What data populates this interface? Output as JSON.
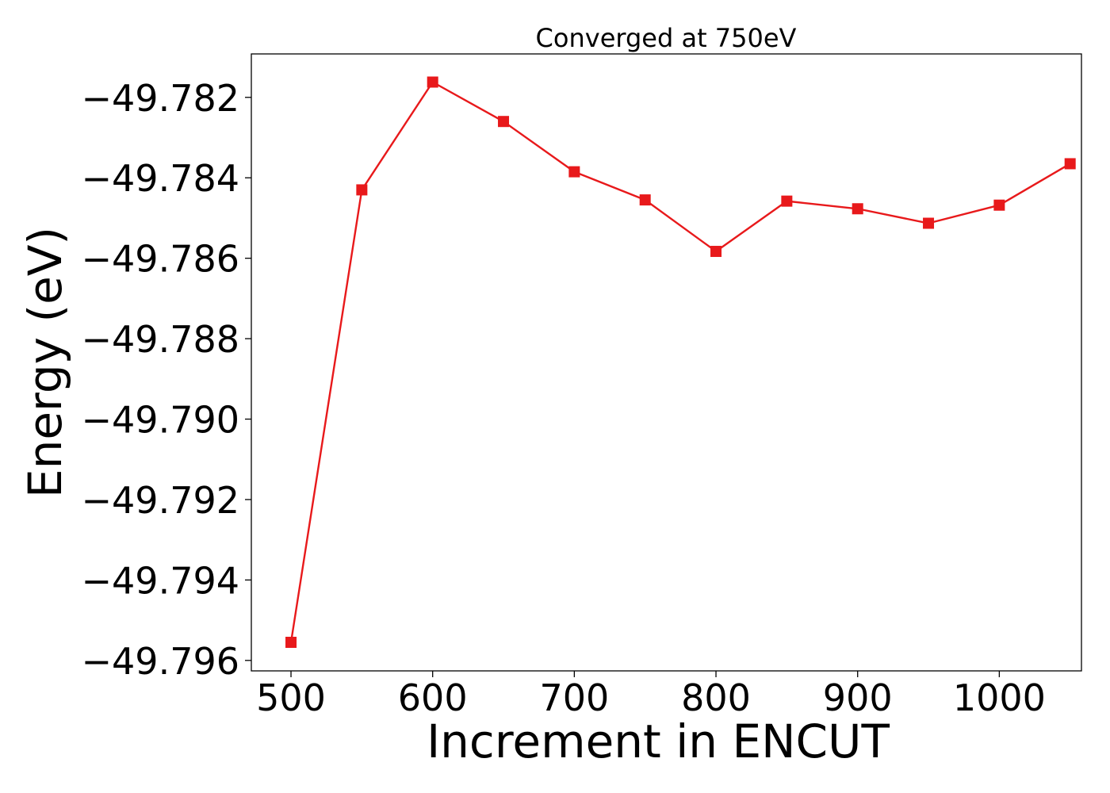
{
  "chart_data": {
    "type": "line",
    "title": "Converged at 750eV",
    "xlabel": "Increment in ENCUT",
    "ylabel": "Energy (eV)",
    "x": [
      500,
      550,
      600,
      650,
      700,
      750,
      800,
      850,
      900,
      950,
      1000,
      1050
    ],
    "series": [
      {
        "values": [
          -49.79555,
          -49.7843,
          -49.78162,
          -49.7826,
          -49.78385,
          -49.78455,
          -49.78583,
          -49.78458,
          -49.78477,
          -49.78513,
          -49.78468,
          -49.78365
        ],
        "color": "#e8191b",
        "marker": "square"
      }
    ],
    "xlim": [
      472,
      1058
    ],
    "ylim": [
      -49.79626,
      -49.78092
    ],
    "xticks": [
      500,
      600,
      700,
      800,
      900,
      1000
    ],
    "xtick_labels": [
      "500",
      "600",
      "700",
      "800",
      "900",
      "1000"
    ],
    "yticks": [
      -49.782,
      -49.784,
      -49.786,
      -49.788,
      -49.79,
      -49.792,
      -49.794,
      -49.796
    ],
    "ytick_labels": [
      "−49.782",
      "−49.784",
      "−49.786",
      "−49.788",
      "−49.790",
      "−49.792",
      "−49.794",
      "−49.796"
    ],
    "grid": false,
    "legend": "none"
  }
}
